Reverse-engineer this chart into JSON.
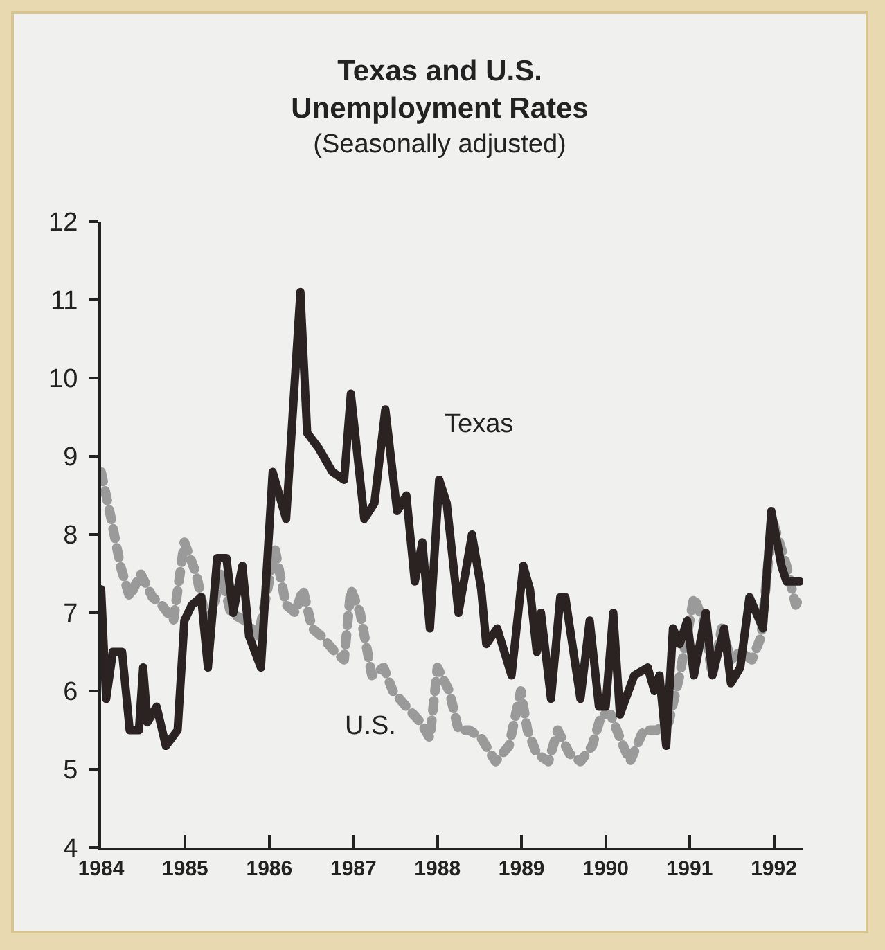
{
  "chart_data": {
    "type": "line",
    "title": "Texas and U.S. Unemployment Rates",
    "subtitle": "(Seasonally adjusted)",
    "xlim": [
      1984,
      1992.35
    ],
    "xticks": [
      1984,
      1985,
      1986,
      1987,
      1988,
      1989,
      1990,
      1991,
      1992
    ],
    "ylim": [
      4,
      12
    ],
    "yticks": [
      4,
      5,
      6,
      7,
      8,
      9,
      10,
      11,
      12
    ],
    "legend": false,
    "marker": "none",
    "series": [
      {
        "name": "Texas",
        "color": "#2a2322",
        "line_style": "solid",
        "x": [
          1984.0,
          1984.06,
          1984.14,
          1984.25,
          1984.34,
          1984.45,
          1984.5,
          1984.55,
          1984.66,
          1984.77,
          1984.91,
          1984.99,
          1985.08,
          1985.19,
          1985.27,
          1985.38,
          1985.49,
          1985.57,
          1985.68,
          1985.76,
          1985.9,
          1986.04,
          1986.2,
          1986.37,
          1986.45,
          1986.59,
          1986.75,
          1986.89,
          1986.97,
          1987.13,
          1987.25,
          1987.38,
          1987.52,
          1987.63,
          1987.73,
          1987.82,
          1987.91,
          1988.02,
          1988.11,
          1988.25,
          1988.41,
          1988.52,
          1988.58,
          1988.71,
          1988.88,
          1989.02,
          1989.1,
          1989.18,
          1989.23,
          1989.35,
          1989.46,
          1989.52,
          1989.7,
          1989.81,
          1989.92,
          1990.0,
          1990.09,
          1990.17,
          1990.34,
          1990.5,
          1990.58,
          1990.64,
          1990.72,
          1990.8,
          1990.88,
          1990.97,
          1991.05,
          1991.19,
          1991.27,
          1991.41,
          1991.49,
          1991.6,
          1991.71,
          1991.87,
          1991.97,
          1992.09,
          1992.15,
          1992.31
        ],
        "values": [
          7.3,
          5.9,
          6.5,
          6.5,
          5.5,
          5.5,
          6.3,
          5.6,
          5.8,
          5.3,
          5.5,
          6.9,
          7.1,
          7.2,
          6.3,
          7.7,
          7.7,
          7.0,
          7.6,
          6.7,
          6.3,
          8.8,
          8.2,
          11.1,
          9.3,
          9.1,
          8.8,
          8.7,
          9.8,
          8.2,
          8.4,
          9.6,
          8.3,
          8.5,
          7.4,
          7.9,
          6.8,
          8.7,
          8.4,
          7.0,
          8.0,
          7.3,
          6.6,
          6.8,
          6.2,
          7.6,
          7.3,
          6.5,
          7.0,
          5.9,
          7.2,
          7.2,
          5.9,
          6.9,
          5.8,
          5.8,
          7.0,
          5.7,
          6.2,
          6.3,
          6.0,
          6.2,
          5.3,
          6.8,
          6.6,
          6.9,
          6.2,
          7.0,
          6.2,
          6.8,
          6.1,
          6.3,
          7.2,
          6.8,
          8.3,
          7.6,
          7.4,
          7.4
        ]
      },
      {
        "name": "U.S.",
        "color": "#9a9a9a",
        "line_style": "dotted",
        "x": [
          1984.0,
          1984.12,
          1984.23,
          1984.34,
          1984.47,
          1984.61,
          1984.72,
          1984.86,
          1984.99,
          1985.13,
          1985.27,
          1985.43,
          1985.54,
          1985.71,
          1985.87,
          1986.07,
          1986.2,
          1986.31,
          1986.4,
          1986.51,
          1986.62,
          1986.78,
          1986.89,
          1986.97,
          1987.08,
          1987.22,
          1987.36,
          1987.47,
          1987.63,
          1987.8,
          1987.91,
          1988.0,
          1988.14,
          1988.25,
          1988.38,
          1988.52,
          1988.69,
          1988.85,
          1988.99,
          1989.07,
          1989.18,
          1989.32,
          1989.43,
          1989.57,
          1989.7,
          1989.84,
          1989.95,
          1990.06,
          1990.17,
          1990.29,
          1990.45,
          1990.61,
          1990.75,
          1990.88,
          1991.05,
          1991.16,
          1991.27,
          1991.38,
          1991.49,
          1991.6,
          1991.74,
          1991.85,
          1991.98,
          1992.15,
          1992.26,
          1992.31
        ],
        "values": [
          8.8,
          8.2,
          7.6,
          7.2,
          7.5,
          7.2,
          7.1,
          6.9,
          7.9,
          7.5,
          6.8,
          7.5,
          7.0,
          6.9,
          6.7,
          7.8,
          7.1,
          7.0,
          7.3,
          6.8,
          6.7,
          6.5,
          6.4,
          7.3,
          7.0,
          6.2,
          6.3,
          6.0,
          5.8,
          5.6,
          5.4,
          6.3,
          6.0,
          5.5,
          5.5,
          5.4,
          5.1,
          5.3,
          6.0,
          5.5,
          5.2,
          5.1,
          5.5,
          5.2,
          5.1,
          5.3,
          5.7,
          5.7,
          5.4,
          5.1,
          5.5,
          5.5,
          5.6,
          6.2,
          7.2,
          6.9,
          6.2,
          6.8,
          6.4,
          6.5,
          6.4,
          6.7,
          8.2,
          7.6,
          7.1,
          7.2
        ]
      }
    ]
  }
}
